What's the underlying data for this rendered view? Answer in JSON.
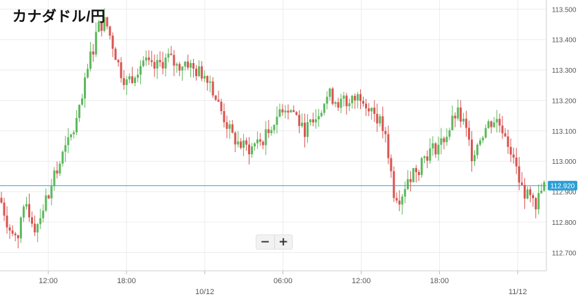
{
  "title": "カナダドル/円",
  "zoom": {
    "out_label": "−",
    "in_label": "+"
  },
  "colors": {
    "up": "#5cb85c",
    "down": "#d9534f",
    "grid": "#ececec",
    "axis_text": "#555555",
    "price_line": "#2a9fd6",
    "price_tag": "#2a9fd6"
  },
  "chart_data": {
    "type": "candlestick",
    "title": "カナダドル/円",
    "ylim": [
      112.64,
      113.53
    ],
    "grid": true,
    "y_ticks": [
      "113.500",
      "113.400",
      "113.300",
      "113.200",
      "113.100",
      "113.000",
      "112.900",
      "112.800",
      "112.700"
    ],
    "x_ticks": [
      {
        "label": "12:00",
        "hour": 12
      },
      {
        "label": "18:00",
        "hour": 18
      },
      {
        "label": "10/12",
        "hour": 24,
        "date_marker": true
      },
      {
        "label": "06:00",
        "hour": 30
      },
      {
        "label": "12:00",
        "hour": 36
      },
      {
        "label": "18:00",
        "hour": 42
      },
      {
        "label": "11/12",
        "hour": 48,
        "date_marker": true
      }
    ],
    "x_range_hours": [
      8.3,
      50.2
    ],
    "current_price": 112.92,
    "current_price_label": "112.920",
    "close_path": [
      [
        8.3,
        112.88
      ],
      [
        9.0,
        112.78
      ],
      [
        9.6,
        112.74
      ],
      [
        10.3,
        112.86
      ],
      [
        11.0,
        112.78
      ],
      [
        11.6,
        112.85
      ],
      [
        12.4,
        112.94
      ],
      [
        13.2,
        113.03
      ],
      [
        13.8,
        113.08
      ],
      [
        14.5,
        113.18
      ],
      [
        15.2,
        113.34
      ],
      [
        15.8,
        113.44
      ],
      [
        16.4,
        113.46
      ],
      [
        16.9,
        113.39
      ],
      [
        17.5,
        113.3
      ],
      [
        18.1,
        113.25
      ],
      [
        18.7,
        113.3
      ],
      [
        19.3,
        113.33
      ],
      [
        20.0,
        113.3
      ],
      [
        20.6,
        113.32
      ],
      [
        21.2,
        113.34
      ],
      [
        21.9,
        113.31
      ],
      [
        22.6,
        113.33
      ],
      [
        23.1,
        113.3
      ],
      [
        23.7,
        113.29
      ],
      [
        24.3,
        113.28
      ],
      [
        24.9,
        113.2
      ],
      [
        25.5,
        113.14
      ],
      [
        26.1,
        113.08
      ],
      [
        26.8,
        113.05
      ],
      [
        27.5,
        113.04
      ],
      [
        28.2,
        113.06
      ],
      [
        29.0,
        113.1
      ],
      [
        29.6,
        113.16
      ],
      [
        30.2,
        113.18
      ],
      [
        30.9,
        113.16
      ],
      [
        31.5,
        113.1
      ],
      [
        32.2,
        113.12
      ],
      [
        32.9,
        113.18
      ],
      [
        33.5,
        113.22
      ],
      [
        34.1,
        113.2
      ],
      [
        34.8,
        113.18
      ],
      [
        35.4,
        113.2
      ],
      [
        36.0,
        113.22
      ],
      [
        36.7,
        113.18
      ],
      [
        37.3,
        113.14
      ],
      [
        37.9,
        113.08
      ],
      [
        38.5,
        112.9
      ],
      [
        39.0,
        112.88
      ],
      [
        39.6,
        112.95
      ],
      [
        40.2,
        112.98
      ],
      [
        40.9,
        113.02
      ],
      [
        41.5,
        113.04
      ],
      [
        42.1,
        113.06
      ],
      [
        42.7,
        113.1
      ],
      [
        43.3,
        113.16
      ],
      [
        43.9,
        113.12
      ],
      [
        44.5,
        113.02
      ],
      [
        45.1,
        113.08
      ],
      [
        45.7,
        113.12
      ],
      [
        46.3,
        113.14
      ],
      [
        47.0,
        113.1
      ],
      [
        47.6,
        113.02
      ],
      [
        48.2,
        112.92
      ],
      [
        48.8,
        112.88
      ],
      [
        49.4,
        112.86
      ],
      [
        50.0,
        112.92
      ]
    ]
  }
}
